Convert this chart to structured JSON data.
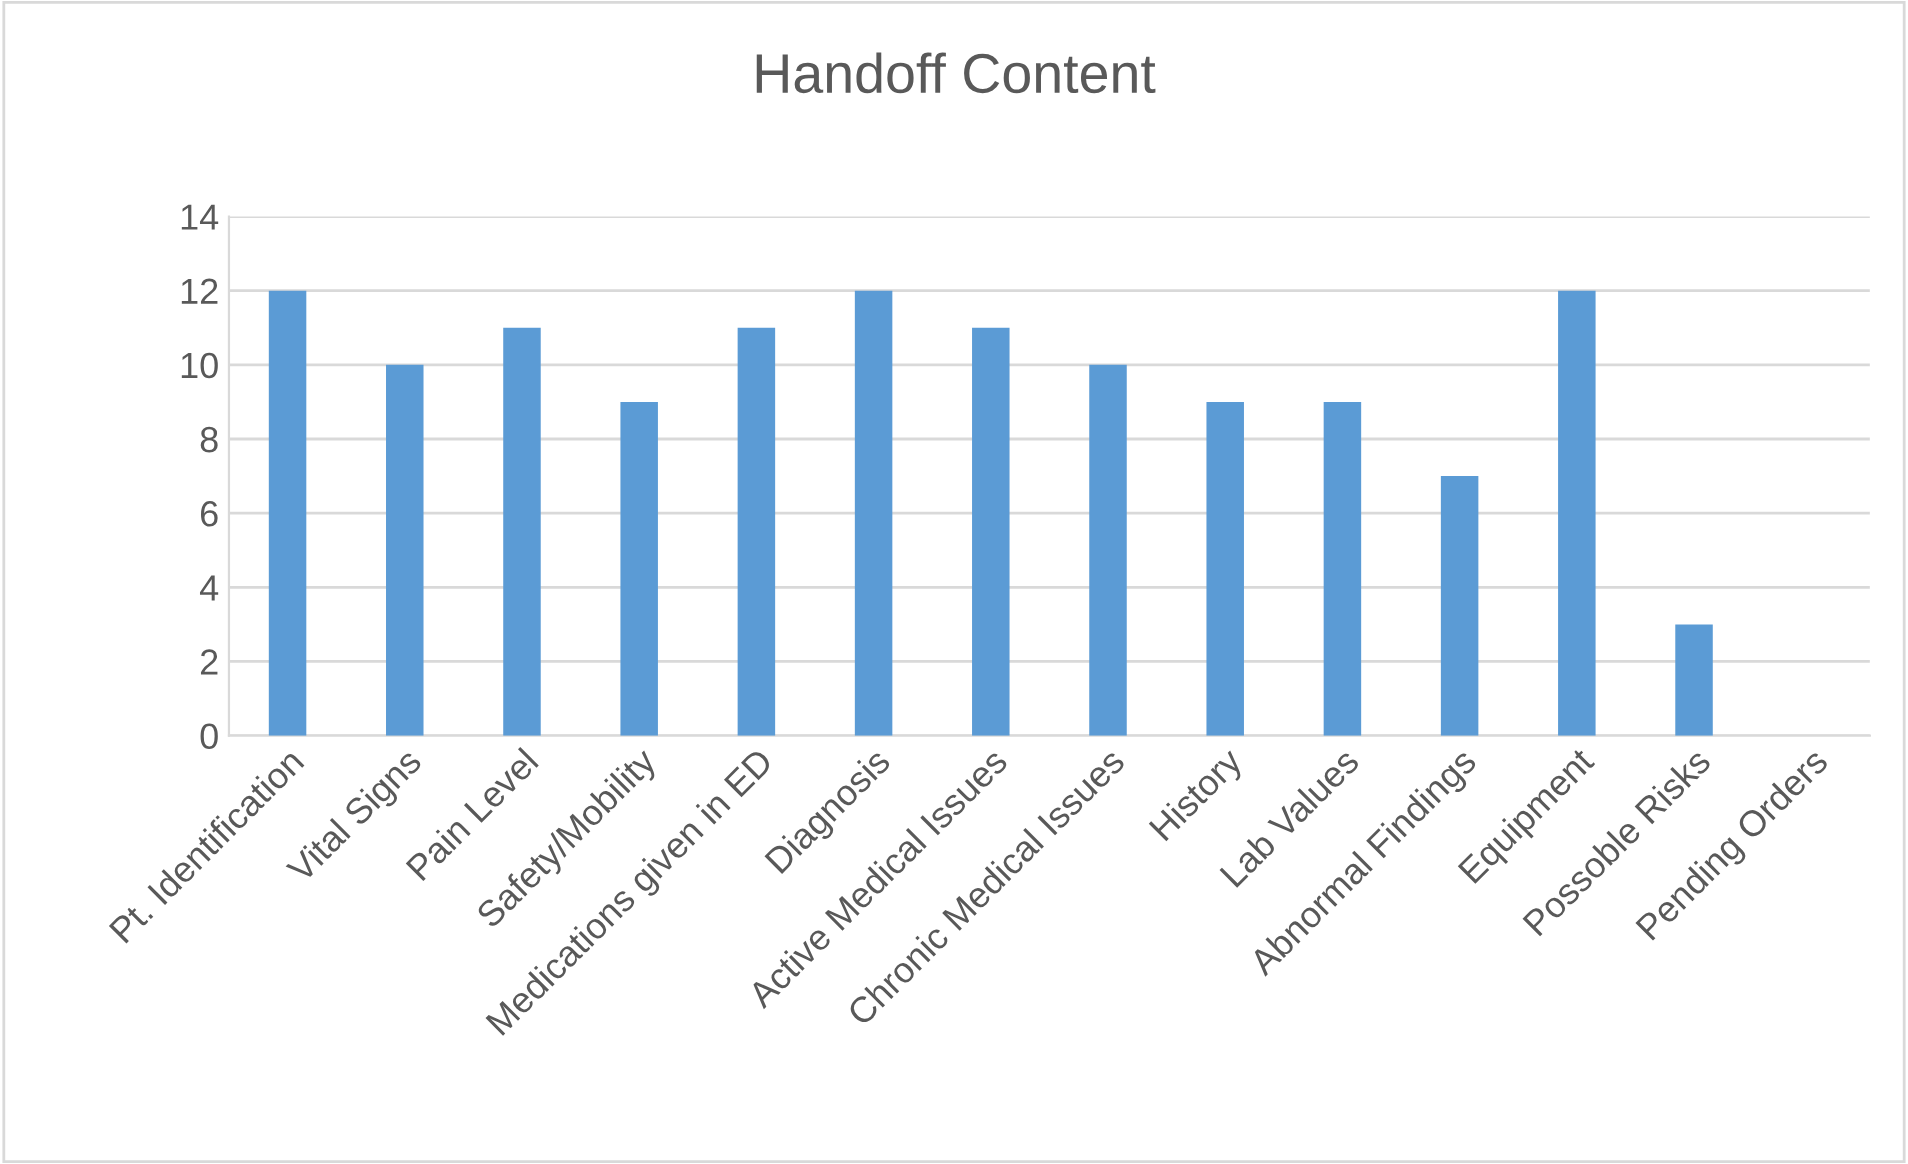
{
  "chart_data": {
    "type": "bar",
    "title": "Handoff Content",
    "categories": [
      "Pt. Identification",
      "Vital Signs",
      "Pain Level",
      "Safety/Mobility",
      "Medications given in ED",
      "Diagnosis",
      "Active Medical Issues",
      "Chronic Medical Issues",
      "History",
      "Lab Values",
      "Abnormal Findings",
      "Equipment",
      "Possoble Risks",
      "Pending Orders"
    ],
    "values": [
      12,
      10,
      11,
      9,
      11,
      12,
      11,
      10,
      9,
      9,
      7,
      12,
      3,
      0
    ],
    "color": "#5b9bd5",
    "ylim": [
      0,
      14
    ],
    "yticks": [
      0,
      2,
      4,
      6,
      8,
      10,
      12,
      14
    ],
    "grid": "y",
    "legend": false
  }
}
